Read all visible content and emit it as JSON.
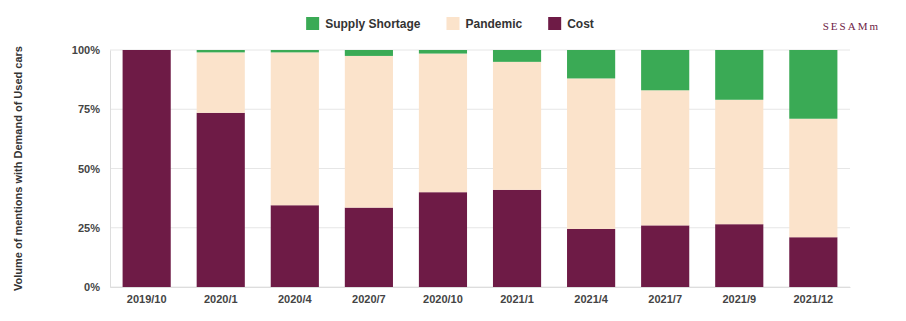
{
  "chart_data": {
    "type": "bar",
    "stacked": true,
    "grid": true,
    "legend": "top",
    "y_label": "Volume of mentions with Demand of Used cars",
    "annotations": [
      "SESAMm"
    ],
    "categories": [
      "2019/10",
      "2020/1",
      "2020/4",
      "2020/7",
      "2020/10",
      "2021/1",
      "2021/4",
      "2021/7",
      "2021/9",
      "2021/12"
    ],
    "series": [
      {
        "name": "Supply Shortage",
        "color": "#3aaa55",
        "values": [
          0,
          1,
          1,
          2.5,
          1.5,
          5,
          12,
          17,
          21,
          29
        ]
      },
      {
        "name": "Pandemic",
        "color": "#fbe3cb",
        "values": [
          0,
          25.5,
          64.5,
          64,
          58.5,
          54,
          63.5,
          57,
          52.5,
          50
        ]
      },
      {
        "name": "Cost",
        "color": "#6e1b46",
        "values": [
          100,
          73.5,
          34.5,
          33.5,
          40,
          41,
          24.5,
          26,
          26.5,
          21
        ]
      }
    ],
    "ylim": [
      0,
      100
    ],
    "yticks": [
      {
        "value": 0,
        "label": "0%"
      },
      {
        "value": 25,
        "label": "25%"
      },
      {
        "value": 50,
        "label": "50%"
      },
      {
        "value": 75,
        "label": "75%"
      },
      {
        "value": 100,
        "label": "100%"
      }
    ]
  }
}
